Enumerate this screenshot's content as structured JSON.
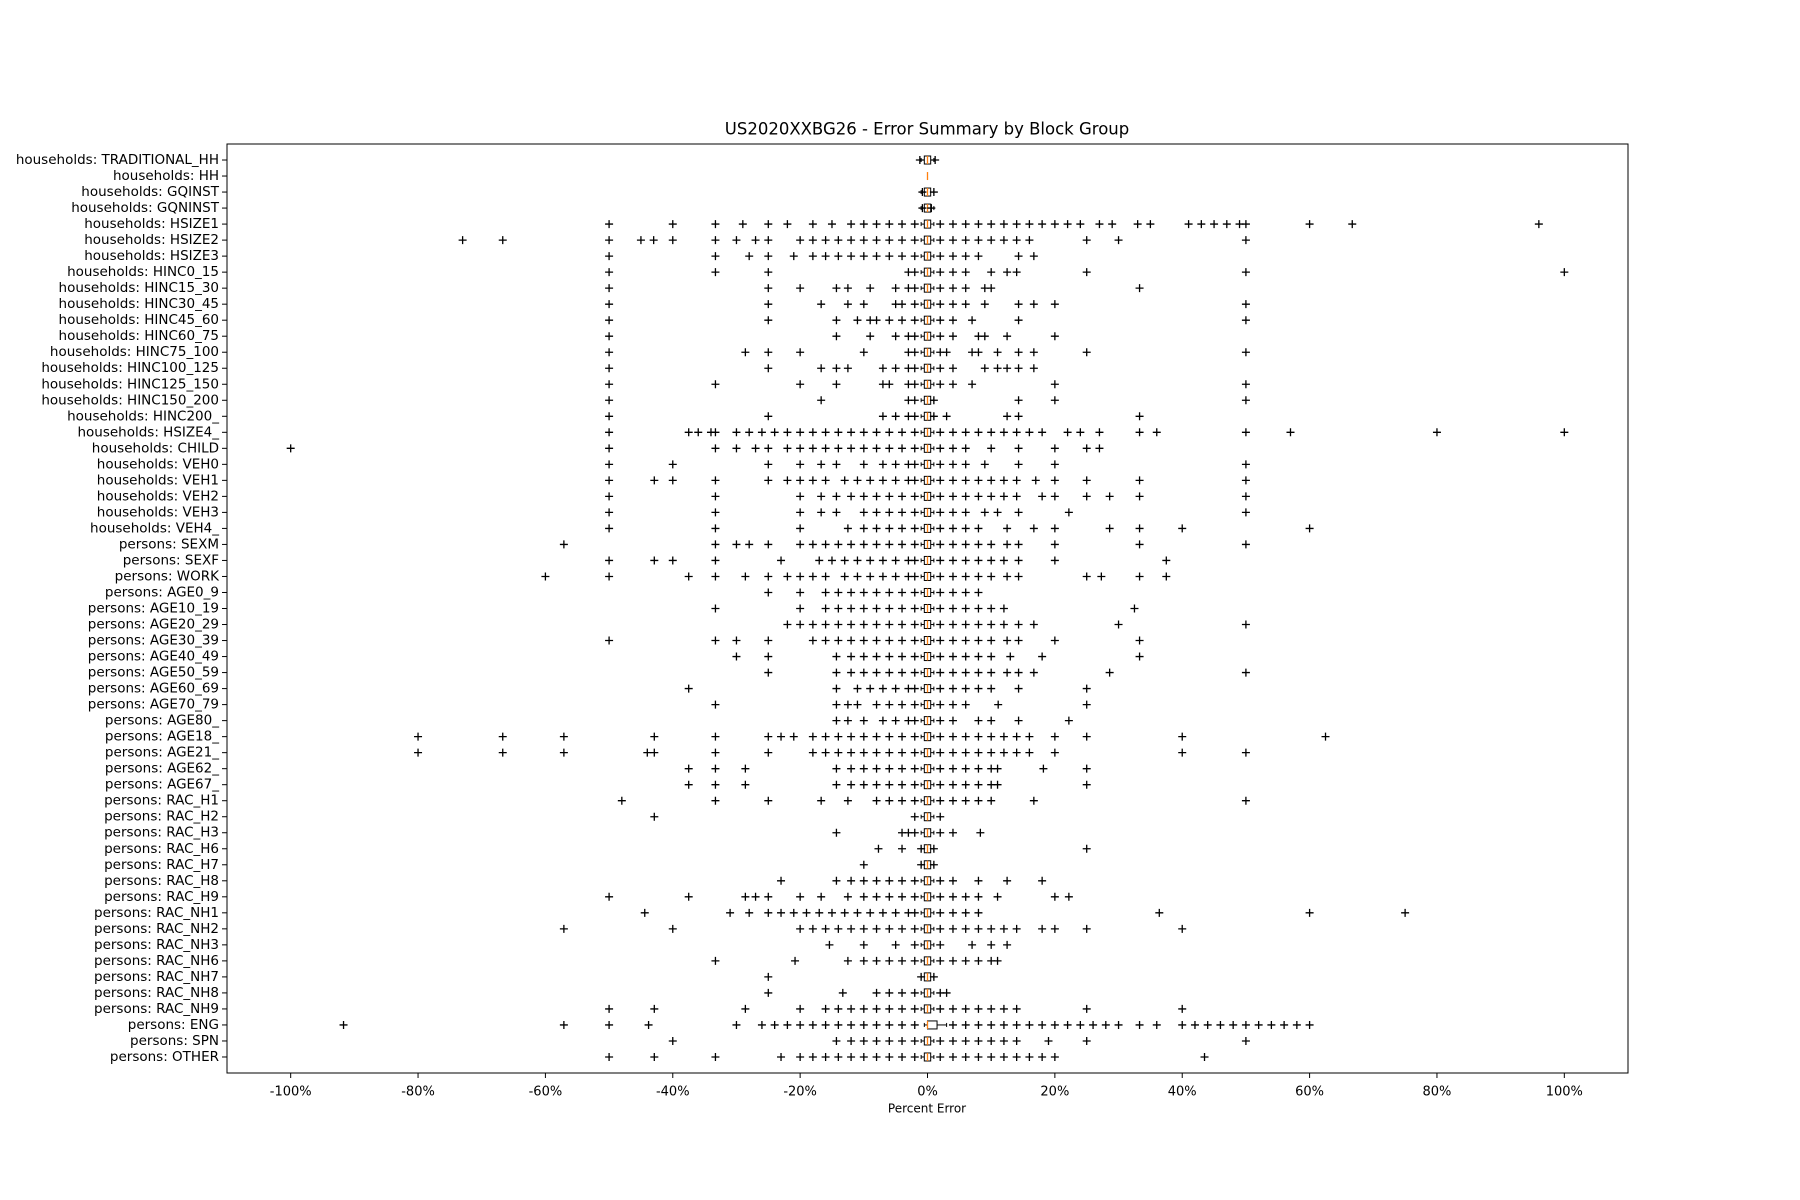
{
  "chart_data": {
    "type": "box",
    "title": "US2020XXBG26 - Error Summary by Block Group",
    "xlabel": "Percent Error",
    "categories": [
      "households: TRADITIONAL_HH",
      "households: HH",
      "households: GQINST",
      "households: GQNINST",
      "households: HSIZE1",
      "households: HSIZE2",
      "households: HSIZE3",
      "households: HINC0_15",
      "households: HINC15_30",
      "households: HINC30_45",
      "households: HINC45_60",
      "households: HINC60_75",
      "households: HINC75_100",
      "households: HINC100_125",
      "households: HINC125_150",
      "households: HINC150_200",
      "households: HINC200_",
      "households: HSIZE4_",
      "households: CHILD",
      "households: VEH0",
      "households: VEH1",
      "households: VEH2",
      "households: VEH3",
      "households: VEH4_",
      "persons: SEXM",
      "persons: SEXF",
      "persons: WORK",
      "persons: AGE0_9",
      "persons: AGE10_19",
      "persons: AGE20_29",
      "persons: AGE30_39",
      "persons: AGE40_49",
      "persons: AGE50_59",
      "persons: AGE60_69",
      "persons: AGE70_79",
      "persons: AGE80_",
      "persons: AGE18_",
      "persons: AGE21_",
      "persons: AGE62_",
      "persons: AGE67_",
      "persons: RAC_H1",
      "persons: RAC_H2",
      "persons: RAC_H3",
      "persons: RAC_H6",
      "persons: RAC_H7",
      "persons: RAC_H8",
      "persons: RAC_H9",
      "persons: RAC_NH1",
      "persons: RAC_NH2",
      "persons: RAC_NH3",
      "persons: RAC_NH6",
      "persons: RAC_NH7",
      "persons: RAC_NH8",
      "persons: RAC_NH9",
      "persons: ENG",
      "persons: SPN",
      "persons: OTHER"
    ],
    "whislo": [
      -1,
      0,
      -1,
      -1,
      -1,
      -1,
      -1,
      -1,
      -1,
      -1,
      -1,
      -1,
      -1,
      -1,
      -1,
      -1,
      -1,
      -1,
      -1,
      -1,
      -1,
      -1,
      -1,
      -1,
      -1,
      -1,
      -1,
      -1,
      -1,
      -1,
      -1,
      -1,
      -1,
      -1,
      -1,
      -1,
      -1,
      -1,
      -1,
      -1,
      -1,
      -1,
      -1,
      -1,
      -1,
      -1,
      -1,
      -1,
      -1,
      -1,
      -1,
      -1,
      -1,
      -1,
      -0.5,
      -1,
      -1
    ],
    "q1": [
      -0.5,
      0,
      -0.5,
      -0.5,
      -0.5,
      -0.5,
      -0.5,
      -0.5,
      -0.5,
      -0.5,
      -0.5,
      -0.5,
      -0.5,
      -0.5,
      -0.5,
      -0.5,
      -0.5,
      -0.5,
      -0.5,
      -0.5,
      -0.5,
      -0.5,
      -0.5,
      -0.5,
      -0.5,
      -0.5,
      -0.5,
      -0.5,
      -0.5,
      -0.5,
      -0.5,
      -0.5,
      -0.5,
      -0.5,
      -0.5,
      -0.5,
      -0.5,
      -0.5,
      -0.5,
      -0.5,
      -0.5,
      -0.5,
      -0.5,
      -0.5,
      -0.5,
      -0.5,
      -0.5,
      -0.5,
      -0.5,
      -0.5,
      -0.5,
      -0.5,
      -0.5,
      -0.5,
      0,
      -0.5,
      -0.5
    ],
    "median": [
      0,
      0,
      0,
      0,
      0,
      0,
      0,
      0,
      0,
      0,
      0,
      0,
      0,
      0,
      0,
      0,
      0,
      0,
      0,
      0,
      0,
      0,
      0,
      0,
      0,
      0,
      0,
      0,
      0,
      0,
      0,
      0,
      0,
      0,
      0,
      0,
      0,
      0,
      0,
      0,
      0,
      0,
      0,
      0,
      0,
      0,
      0,
      0,
      0,
      0,
      0,
      0,
      0,
      0,
      0,
      0,
      0
    ],
    "q3": [
      0.5,
      0,
      0.5,
      0.5,
      0.5,
      0.5,
      0.5,
      0.5,
      0.5,
      0.5,
      0.5,
      0.5,
      0.5,
      0.5,
      0.5,
      0.5,
      0.5,
      0.5,
      0.5,
      0.5,
      0.5,
      0.5,
      0.5,
      0.5,
      0.5,
      0.5,
      0.5,
      0.5,
      0.5,
      0.5,
      0.5,
      0.5,
      0.5,
      0.5,
      0.5,
      0.5,
      0.5,
      0.5,
      0.5,
      0.5,
      0.5,
      0.5,
      0.5,
      0.5,
      0.5,
      0.5,
      0.5,
      0.5,
      0.5,
      0.5,
      0.5,
      0.5,
      0.5,
      0.5,
      1.5,
      0.5,
      0.5
    ],
    "whishi": [
      1,
      0,
      1,
      1,
      1,
      1,
      1,
      1,
      1,
      1,
      1,
      1,
      1,
      1,
      1,
      1,
      1,
      1,
      1,
      1,
      1,
      1,
      1,
      1,
      1,
      1,
      1,
      1,
      1,
      1,
      1,
      1,
      1,
      1,
      1,
      1,
      1,
      1,
      1,
      1,
      1,
      1,
      1,
      1,
      1,
      1,
      1,
      1,
      1,
      1,
      1,
      1,
      1,
      1,
      3,
      1,
      1
    ],
    "fliers": [
      [
        -1.2,
        1.2
      ],
      [],
      [
        -0.8,
        1
      ],
      [
        -0.8,
        0.6
      ],
      [
        -50,
        -40,
        -33.3,
        -29,
        -25,
        -22,
        -18,
        -15,
        -12,
        -10,
        -8,
        -6,
        -4,
        -2,
        2,
        4,
        6,
        8,
        10,
        12,
        14,
        16,
        18,
        20,
        22,
        24,
        27,
        29,
        33,
        35,
        41,
        43,
        45,
        47,
        49,
        50,
        60,
        66.7,
        96
      ],
      [
        -73,
        -66.7,
        -50,
        -45,
        -43,
        -40,
        -33.3,
        -30,
        -27,
        -25,
        -20,
        -18,
        -16,
        -14,
        -12,
        -10,
        -8,
        -6,
        -4,
        -2,
        2,
        4,
        6,
        8,
        10,
        12,
        14,
        16,
        25,
        30,
        50
      ],
      [
        -50,
        -33.3,
        -28,
        -25,
        -21,
        -18,
        -16,
        -14,
        -12,
        -10,
        -8,
        -6,
        -4,
        -2,
        2,
        4,
        6,
        8,
        14.3,
        16.7
      ],
      [
        -50,
        -33.3,
        -25,
        -3,
        -2,
        2,
        4,
        6,
        10,
        12.5,
        14,
        25,
        50,
        100
      ],
      [
        -50,
        -25,
        -20,
        -14.3,
        -12.5,
        -9,
        -5,
        -3,
        -2,
        2,
        4,
        6,
        9,
        10,
        33.3
      ],
      [
        -50,
        -25,
        -16.7,
        -12.5,
        -10,
        -5,
        -4,
        -2,
        2,
        4,
        6,
        9,
        14.3,
        16.7,
        20,
        50
      ],
      [
        -50,
        -25,
        -14.3,
        -11,
        -9,
        -8,
        -6,
        -4,
        -2,
        2,
        4,
        7,
        14.3,
        50
      ],
      [
        -50,
        -14.3,
        -9,
        -5,
        -3,
        -2,
        2,
        4,
        8,
        9,
        12.5,
        20
      ],
      [
        -50,
        -28.6,
        -25,
        -20,
        -10,
        -3,
        -2,
        2,
        3,
        7,
        8,
        11,
        14.3,
        16.7,
        25,
        50
      ],
      [
        -50,
        -25,
        -16.7,
        -14.3,
        -12.5,
        -7,
        -5,
        -3,
        -2,
        2,
        4,
        9,
        11,
        12.5,
        14.3,
        16.7
      ],
      [
        -50,
        -33.3,
        -20,
        -14.3,
        -7,
        -6,
        -3,
        -2,
        2,
        4,
        7,
        20,
        50
      ],
      [
        -50,
        -16.7,
        -3,
        -2,
        1,
        14.3,
        20,
        50
      ],
      [
        -50,
        -25,
        -7,
        -5,
        -3,
        -2,
        1,
        3,
        12.5,
        14.3,
        33.3
      ],
      [
        -50,
        -37.5,
        -36,
        -34,
        -33.3,
        -30,
        -28,
        -26,
        -24,
        -22,
        -20,
        -18,
        -16,
        -14,
        -12,
        -10,
        -8,
        -6,
        -4,
        -2,
        2,
        4,
        6,
        8,
        10,
        12,
        14,
        16,
        18,
        22,
        24,
        27,
        33.3,
        36,
        50,
        57,
        80,
        100
      ],
      [
        -100,
        -50,
        -33.3,
        -30,
        -27,
        -25,
        -22,
        -20,
        -18,
        -16,
        -14,
        -12,
        -10,
        -8,
        -6,
        -4,
        -2,
        2,
        4,
        6,
        10,
        14.3,
        20,
        25,
        27
      ],
      [
        -50,
        -40,
        -25,
        -20,
        -16.7,
        -14.3,
        -10,
        -7,
        -5,
        -3,
        -2,
        2,
        4,
        6,
        9,
        14.3,
        20,
        50
      ],
      [
        -50,
        -42.9,
        -40,
        -33.3,
        -25,
        -22,
        -20,
        -18,
        -16,
        -13,
        -11,
        -9,
        -7,
        -5,
        -3,
        -2,
        2,
        4,
        6,
        8,
        10,
        12,
        14,
        17,
        20,
        25,
        33.3,
        50
      ],
      [
        -50,
        -33.3,
        -20,
        -16.7,
        -14.3,
        -12,
        -10,
        -8,
        -6,
        -4,
        -2,
        2,
        4,
        6,
        8,
        10,
        12,
        14,
        18,
        20,
        25,
        28.6,
        33.3,
        50
      ],
      [
        -50,
        -33.3,
        -20,
        -16.7,
        -14.3,
        -10,
        -8,
        -6,
        -4,
        -2,
        2,
        4,
        6,
        9,
        11,
        14.3,
        22.2,
        50
      ],
      [
        -50,
        -33.3,
        -20,
        -12.5,
        -10,
        -8,
        -6,
        -4,
        -2,
        2,
        4,
        6,
        8,
        12.5,
        16.7,
        20,
        28.6,
        33.3,
        40,
        60
      ],
      [
        -57.1,
        -33.3,
        -30,
        -28,
        -25,
        -20,
        -18,
        -16,
        -14,
        -12,
        -10,
        -8,
        -6,
        -4,
        -2,
        2,
        4,
        6,
        8,
        10,
        12.5,
        14.3,
        20,
        33.3,
        50
      ],
      [
        -50,
        -42.9,
        -40,
        -33.3,
        -23,
        -17,
        -15,
        -13,
        -11,
        -9,
        -7,
        -5,
        -3,
        -2,
        2,
        4,
        6,
        8,
        10,
        12,
        14.3,
        20,
        37.5
      ],
      [
        -60,
        -50,
        -37.5,
        -33.3,
        -28.6,
        -25,
        -22,
        -20,
        -18,
        -16,
        -13,
        -11,
        -9,
        -7,
        -5,
        -3,
        -2,
        2,
        4,
        6,
        8,
        10,
        12.5,
        14.3,
        25,
        27.3,
        33.3,
        37.5
      ],
      [
        -25,
        -20,
        -16,
        -14,
        -12,
        -10,
        -8,
        -6,
        -4,
        -2,
        2,
        4,
        6,
        8
      ],
      [
        -33.3,
        -20,
        -16,
        -14,
        -12,
        -10,
        -8,
        -6,
        -4,
        -2,
        2,
        4,
        6,
        8,
        10,
        12,
        32.5
      ],
      [
        -22,
        -20,
        -18,
        -16,
        -14,
        -12,
        -10,
        -8,
        -6,
        -4,
        -2,
        2,
        4,
        6,
        8,
        10,
        12,
        14.3,
        16.7,
        30,
        50
      ],
      [
        -50,
        -33.3,
        -30,
        -25,
        -18,
        -16,
        -14,
        -12,
        -10,
        -8,
        -6,
        -4,
        -2,
        2,
        4,
        6,
        8,
        10,
        12.5,
        14.3,
        20,
        33.3
      ],
      [
        -30,
        -25,
        -14.3,
        -12,
        -10,
        -8,
        -6,
        -4,
        -2,
        2,
        4,
        6,
        8,
        10,
        13,
        18,
        33.3
      ],
      [
        -25,
        -14.3,
        -12,
        -10,
        -8,
        -6,
        -4,
        -2,
        2,
        4,
        6,
        8,
        10,
        12.5,
        14.3,
        16.7,
        28.6,
        50
      ],
      [
        -37.5,
        -14.3,
        -11,
        -9,
        -7,
        -5,
        -3,
        -2,
        2,
        4,
        6,
        8,
        10,
        14.3,
        25
      ],
      [
        -33.3,
        -14.3,
        -12.5,
        -11,
        -8,
        -6,
        -4,
        -2,
        2,
        4,
        6,
        11.1,
        25
      ],
      [
        -14.3,
        -12.5,
        -10,
        -7,
        -5,
        -3,
        -2,
        2,
        4,
        8,
        10,
        14.3,
        22.2
      ],
      [
        -80,
        -66.7,
        -57.1,
        -42.9,
        -33.3,
        -25,
        -23,
        -21,
        -18,
        -16,
        -14,
        -12,
        -10,
        -8,
        -6,
        -4,
        -2,
        2,
        4,
        6,
        8,
        10,
        12,
        14,
        16,
        20,
        25,
        40,
        62.5
      ],
      [
        -80,
        -66.7,
        -57.1,
        -44,
        -42.9,
        -33.3,
        -25,
        -18,
        -16,
        -14,
        -12,
        -10,
        -8,
        -6,
        -4,
        -2,
        2,
        4,
        6,
        8,
        10,
        12,
        14,
        16,
        20,
        40,
        50
      ],
      [
        -37.5,
        -33.3,
        -28.6,
        -14.3,
        -12,
        -10,
        -8,
        -6,
        -4,
        -2,
        2,
        4,
        6,
        8,
        10,
        11,
        18.2,
        25
      ],
      [
        -37.5,
        -33.3,
        -28.6,
        -14.3,
        -12,
        -10,
        -8,
        -6,
        -4,
        -2,
        2,
        4,
        6,
        8,
        10,
        11,
        25
      ],
      [
        -48,
        -33.3,
        -25,
        -16.7,
        -12.5,
        -8,
        -6,
        -4,
        -2,
        2,
        4,
        6,
        8,
        10,
        16.7,
        50
      ],
      [
        -42.9,
        -2,
        2
      ],
      [
        -14.3,
        -4,
        -3,
        -2,
        2,
        4,
        8.3
      ],
      [
        -7.7,
        -4,
        -1,
        1,
        25
      ],
      [
        -10,
        -1,
        1
      ],
      [
        -23,
        -14.3,
        -12,
        -10,
        -8,
        -6,
        -4,
        -2,
        2,
        4,
        8,
        12.5,
        18
      ],
      [
        -50,
        -37.5,
        -28.6,
        -27,
        -25,
        -20,
        -16.7,
        -12.5,
        -10,
        -8,
        -6,
        -4,
        -2,
        2,
        4,
        6,
        8,
        11,
        20,
        22.2
      ],
      [
        -44.4,
        -31,
        -28,
        -25,
        -23,
        -21,
        -19,
        -17,
        -15,
        -13,
        -11,
        -9,
        -7,
        -5,
        -3,
        -2,
        2,
        4,
        6,
        8,
        36.4,
        60,
        75
      ],
      [
        -57.1,
        -40,
        -20,
        -18,
        -16,
        -14,
        -12,
        -10,
        -8,
        -6,
        -4,
        -2,
        2,
        4,
        6,
        8,
        10,
        12,
        14,
        18,
        20,
        25,
        40
      ],
      [
        -15.4,
        -10,
        -5,
        -2,
        2,
        7,
        10,
        12.5
      ],
      [
        -33.3,
        -20.8,
        -12.5,
        -10,
        -8,
        -6,
        -4,
        -2,
        2,
        4,
        6,
        8,
        10,
        11
      ],
      [
        -25,
        -1,
        1
      ],
      [
        -25,
        -13.3,
        -8,
        -6,
        -4,
        -2,
        2,
        3
      ],
      [
        -50,
        -42.9,
        -28.6,
        -20,
        -16,
        -14,
        -12,
        -10,
        -8,
        -6,
        -4,
        -2,
        2,
        4,
        6,
        8,
        10,
        12,
        14,
        25,
        40
      ],
      [
        -91.7,
        -57.1,
        -50,
        -43.8,
        -30,
        -26,
        -24,
        -22,
        -20,
        -18,
        -16,
        -14,
        -12,
        -10,
        -8,
        -6,
        -4,
        -2,
        4,
        6,
        8,
        10,
        12,
        14,
        16,
        18,
        20,
        22,
        24,
        26,
        28,
        30,
        33.3,
        36,
        40,
        42,
        44,
        46,
        48,
        50,
        52,
        54,
        56,
        58,
        60
      ],
      [
        -40,
        -14.3,
        -12,
        -10,
        -8,
        -6,
        -4,
        -2,
        2,
        4,
        6,
        8,
        10,
        12,
        14,
        19,
        25,
        50
      ],
      [
        -50,
        -42.9,
        -33.3,
        -23,
        -20,
        -18,
        -16,
        -14,
        -12,
        -10,
        -8,
        -6,
        -4,
        -2,
        2,
        4,
        6,
        8,
        10,
        12,
        14,
        16,
        18,
        20,
        43.5
      ]
    ],
    "box_color": "#000000",
    "median_color": "#ff7f0e",
    "flier_color": "#000000",
    "xlim": [
      -110,
      110
    ],
    "xticks": [
      {
        "value": -100,
        "label": "-100%"
      },
      {
        "value": -80,
        "label": "-80%"
      },
      {
        "value": -60,
        "label": "-60%"
      },
      {
        "value": -40,
        "label": "-40%"
      },
      {
        "value": -20,
        "label": "-20%"
      },
      {
        "value": 0,
        "label": "0%"
      },
      {
        "value": 20,
        "label": "20%"
      },
      {
        "value": 40,
        "label": "40%"
      },
      {
        "value": 60,
        "label": "60%"
      },
      {
        "value": 80,
        "label": "80%"
      },
      {
        "value": 100,
        "label": "100%"
      }
    ],
    "grid": false
  }
}
